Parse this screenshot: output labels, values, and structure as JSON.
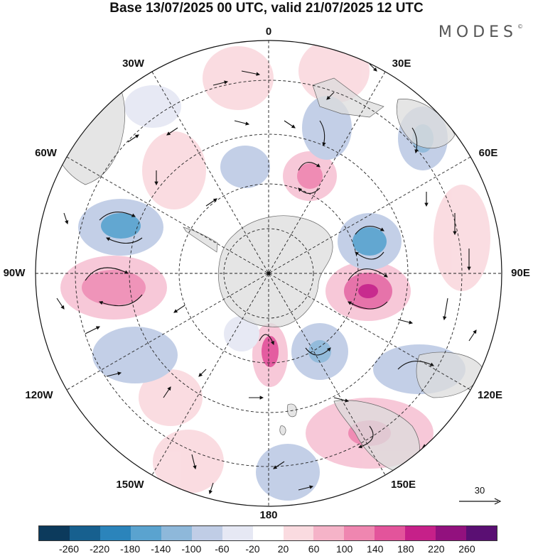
{
  "title": "Base 13/07/2025 00 UTC, valid 21/07/2025 12 UTC",
  "brand": "MODES",
  "brand_mark": "©",
  "map": {
    "projection": "south-polar-stereographic",
    "longitude_labels": {
      "top": "0",
      "top_right": "30E",
      "upper_right": "60E",
      "right": "90E",
      "lower_right": "120E",
      "bottom_right": "150E",
      "bottom": "180",
      "bottom_left": "150W",
      "lower_left": "120W",
      "left": "90W",
      "upper_left": "60W",
      "top_left": "30W"
    },
    "positive_color": "#e04a8a",
    "negative_color": "#4a86c0",
    "land_color": "#e6e6e6"
  },
  "vector_scale": {
    "label": "30"
  },
  "colorbar": {
    "colors": [
      "#0c3a5c",
      "#17608f",
      "#2b84bb",
      "#5aa3cf",
      "#8eb8da",
      "#c0cde6",
      "#e6e8f4",
      "#ffffff",
      "#fadbe0",
      "#f5b3c8",
      "#ef86b0",
      "#e3549b",
      "#c62089",
      "#92117e",
      "#5a0f73"
    ],
    "ticks": [
      "-260",
      "-220",
      "-180",
      "-140",
      "-100",
      "-60",
      "-20",
      "20",
      "60",
      "100",
      "140",
      "180",
      "220",
      "260"
    ]
  }
}
